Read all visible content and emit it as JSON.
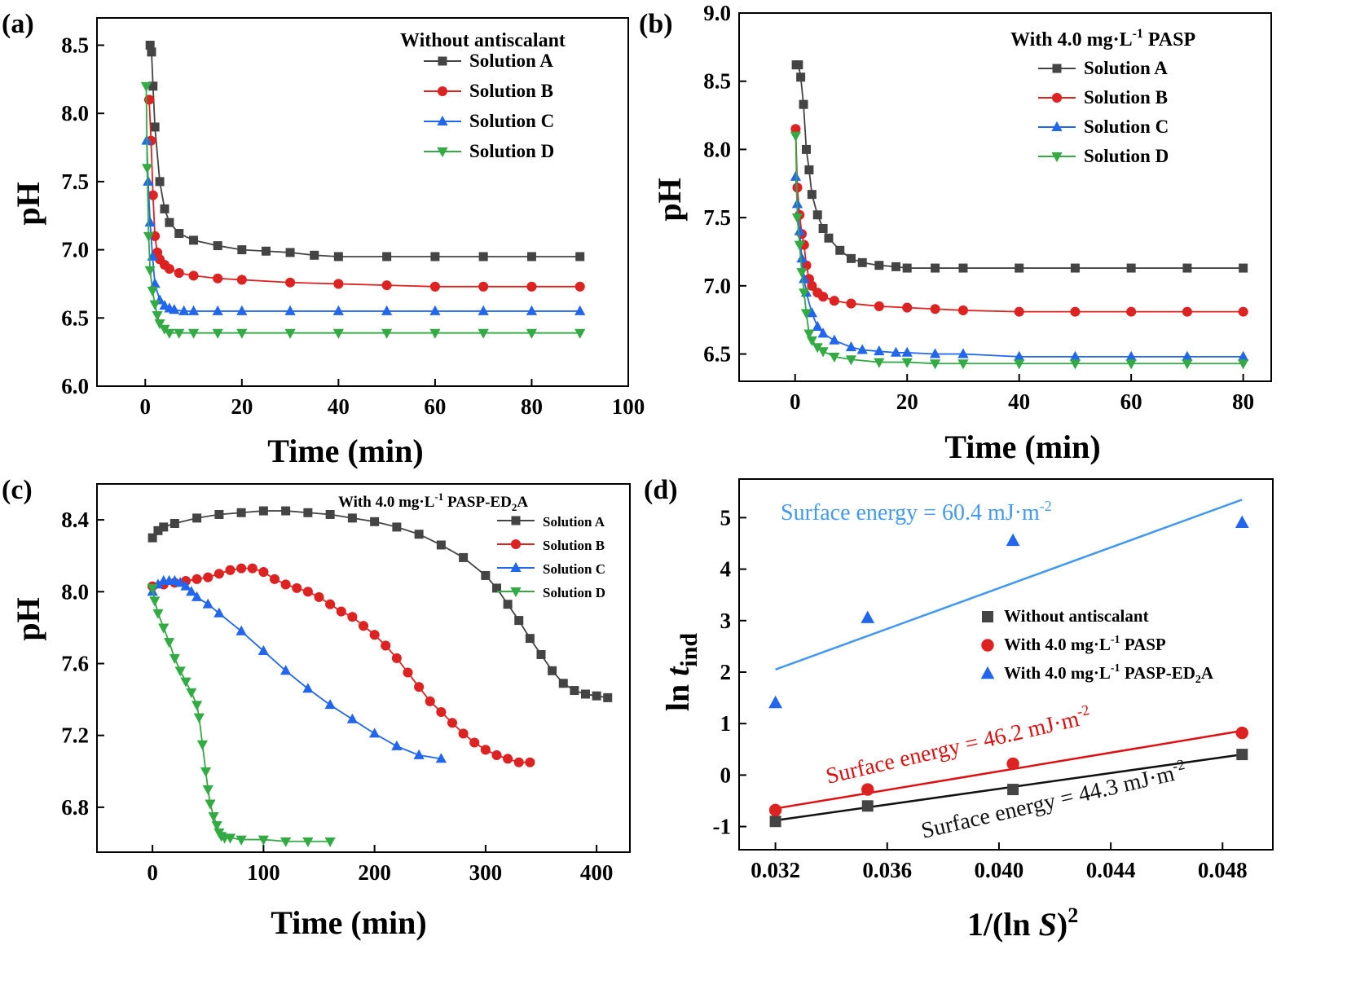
{
  "colors": {
    "A": "#444444",
    "B": "#dd2222",
    "C": "#2266ee",
    "D": "#33aa44",
    "line_top": "#4499ee",
    "line_mid": "#dd1111",
    "line_bot": "#111111"
  },
  "chart_data": [
    {
      "type": "line",
      "panel": "(a)",
      "xlabel": "Time (min)",
      "ylabel": "pH",
      "xlim": [
        -10,
        100
      ],
      "ylim": [
        6.0,
        8.7
      ],
      "xticks": [
        "0",
        "20",
        "40",
        "60",
        "80",
        "100"
      ],
      "yticks": [
        "6.0",
        "6.5",
        "7.0",
        "7.5",
        "8.0",
        "8.5"
      ],
      "legend_title": "Without antiscalant",
      "legend": "top-right",
      "series": [
        {
          "name": "Solution A",
          "marker": "square",
          "x": [
            1.0,
            1.3,
            1.6,
            2,
            3,
            4,
            5,
            7,
            10,
            15,
            20,
            25,
            30,
            35,
            40,
            50,
            60,
            70,
            80,
            90
          ],
          "y": [
            8.5,
            8.45,
            8.2,
            7.9,
            7.5,
            7.3,
            7.2,
            7.12,
            7.07,
            7.03,
            7.0,
            6.99,
            6.98,
            6.96,
            6.95,
            6.95,
            6.95,
            6.95,
            6.95,
            6.95
          ]
        },
        {
          "name": "Solution B",
          "marker": "circle",
          "x": [
            0.8,
            1.2,
            1.6,
            2,
            2.5,
            3,
            4,
            5,
            7,
            10,
            15,
            20,
            30,
            40,
            50,
            60,
            70,
            80,
            90
          ],
          "y": [
            8.1,
            7.8,
            7.4,
            7.1,
            6.98,
            6.93,
            6.89,
            6.86,
            6.83,
            6.81,
            6.79,
            6.78,
            6.76,
            6.75,
            6.74,
            6.73,
            6.73,
            6.73,
            6.73
          ]
        },
        {
          "name": "Solution C",
          "marker": "triangle-up",
          "x": [
            0.3,
            0.6,
            1,
            1.5,
            2,
            3,
            4,
            5,
            6,
            8,
            10,
            15,
            20,
            30,
            40,
            50,
            60,
            70,
            80,
            90
          ],
          "y": [
            7.8,
            7.5,
            7.2,
            6.95,
            6.75,
            6.63,
            6.59,
            6.57,
            6.56,
            6.55,
            6.55,
            6.55,
            6.55,
            6.55,
            6.55,
            6.55,
            6.55,
            6.55,
            6.55,
            6.55
          ]
        },
        {
          "name": "Solution D",
          "marker": "triangle-down",
          "x": [
            0.2,
            0.4,
            0.7,
            1,
            1.5,
            2,
            2.5,
            3,
            4,
            5,
            7,
            10,
            15,
            20,
            30,
            40,
            50,
            60,
            70,
            80,
            90
          ],
          "y": [
            8.2,
            7.6,
            7.1,
            6.85,
            6.7,
            6.6,
            6.52,
            6.46,
            6.42,
            6.39,
            6.39,
            6.39,
            6.39,
            6.39,
            6.39,
            6.39,
            6.39,
            6.39,
            6.39,
            6.39,
            6.39
          ]
        }
      ]
    },
    {
      "type": "line",
      "panel": "(b)",
      "xlabel": "Time (min)",
      "ylabel": "pH",
      "xlim": [
        -10,
        85
      ],
      "ylim": [
        6.3,
        9.0
      ],
      "xticks": [
        "0",
        "20",
        "40",
        "60",
        "80"
      ],
      "yticks": [
        "6.5",
        "7.0",
        "7.5",
        "8.0",
        "8.5",
        "9.0"
      ],
      "legend_title": "With 4.0 mg·L",
      "legend_title_sup": "-1",
      "legend_title_end": " PASP",
      "legend": "top-right",
      "series": [
        {
          "name": "Solution A",
          "marker": "square",
          "x": [
            0.2,
            0.6,
            1,
            1.5,
            2,
            2.5,
            3,
            4,
            5,
            6,
            8,
            10,
            12,
            15,
            18,
            20,
            25,
            30,
            40,
            50,
            60,
            70,
            80
          ],
          "y": [
            8.62,
            8.62,
            8.53,
            8.33,
            8.0,
            7.85,
            7.67,
            7.52,
            7.42,
            7.35,
            7.26,
            7.2,
            7.17,
            7.15,
            7.14,
            7.13,
            7.13,
            7.13,
            7.13,
            7.13,
            7.13,
            7.13,
            7.13
          ]
        },
        {
          "name": "Solution B",
          "marker": "circle",
          "x": [
            0.1,
            0.4,
            0.8,
            1.2,
            1.6,
            2,
            2.5,
            3,
            4,
            5,
            7,
            10,
            15,
            20,
            25,
            30,
            40,
            50,
            60,
            70,
            80
          ],
          "y": [
            8.15,
            7.72,
            7.52,
            7.38,
            7.3,
            7.15,
            7.05,
            7.0,
            6.95,
            6.92,
            6.89,
            6.87,
            6.85,
            6.84,
            6.83,
            6.82,
            6.81,
            6.81,
            6.81,
            6.81,
            6.81
          ]
        },
        {
          "name": "Solution C",
          "marker": "triangle-up",
          "x": [
            0.1,
            0.4,
            0.8,
            1.2,
            1.6,
            2,
            3,
            4,
            5,
            7,
            10,
            12,
            15,
            18,
            20,
            25,
            30,
            40,
            50,
            60,
            70,
            80
          ],
          "y": [
            7.8,
            7.6,
            7.4,
            7.2,
            7.05,
            6.95,
            6.8,
            6.7,
            6.65,
            6.6,
            6.55,
            6.53,
            6.52,
            6.51,
            6.51,
            6.5,
            6.5,
            6.48,
            6.48,
            6.48,
            6.48,
            6.48
          ]
        },
        {
          "name": "Solution D",
          "marker": "triangle-down",
          "x": [
            0.1,
            0.4,
            0.8,
            1.2,
            1.6,
            2,
            2.5,
            3,
            4,
            5,
            7,
            10,
            15,
            20,
            25,
            30,
            40,
            50,
            60,
            70,
            80
          ],
          "y": [
            8.1,
            7.5,
            7.3,
            7.1,
            6.95,
            6.8,
            6.65,
            6.6,
            6.55,
            6.52,
            6.48,
            6.46,
            6.44,
            6.44,
            6.43,
            6.43,
            6.43,
            6.43,
            6.43,
            6.43,
            6.43
          ]
        }
      ]
    },
    {
      "type": "line",
      "panel": "(c)",
      "xlabel": "Time (min)",
      "ylabel": "pH",
      "xlim": [
        -50,
        430
      ],
      "ylim": [
        6.55,
        8.6
      ],
      "xticks": [
        "0",
        "100",
        "200",
        "300",
        "400"
      ],
      "yticks": [
        "6.8",
        "7.2",
        "7.6",
        "8.0",
        "8.4"
      ],
      "legend_title": "With 4.0 mg·L",
      "legend_title_sup": "-1",
      "legend_title_end": " PASP-ED",
      "legend_title_sub": "2",
      "legend_title_tail": "A",
      "legend": "top-right",
      "series": [
        {
          "name": "Solution A",
          "marker": "square",
          "x": [
            0,
            5,
            10,
            20,
            40,
            60,
            80,
            100,
            120,
            140,
            160,
            180,
            200,
            220,
            240,
            260,
            280,
            300,
            310,
            320,
            330,
            340,
            350,
            360,
            370,
            380,
            390,
            400,
            410
          ],
          "y": [
            8.3,
            8.34,
            8.36,
            8.38,
            8.41,
            8.43,
            8.44,
            8.45,
            8.45,
            8.44,
            8.43,
            8.41,
            8.39,
            8.36,
            8.32,
            8.26,
            8.19,
            8.09,
            8.02,
            7.93,
            7.84,
            7.74,
            7.65,
            7.56,
            7.49,
            7.45,
            7.43,
            7.42,
            7.41
          ]
        },
        {
          "name": "Solution B",
          "marker": "circle",
          "x": [
            0,
            10,
            20,
            30,
            40,
            50,
            60,
            70,
            80,
            90,
            100,
            110,
            120,
            130,
            140,
            150,
            160,
            170,
            180,
            190,
            200,
            210,
            220,
            230,
            240,
            250,
            260,
            270,
            280,
            290,
            300,
            310,
            320,
            330,
            340
          ],
          "y": [
            8.03,
            8.04,
            8.05,
            8.06,
            8.07,
            8.08,
            8.1,
            8.12,
            8.13,
            8.13,
            8.11,
            8.07,
            8.04,
            8.02,
            8.0,
            7.97,
            7.93,
            7.89,
            7.86,
            7.81,
            7.76,
            7.7,
            7.63,
            7.55,
            7.47,
            7.39,
            7.33,
            7.27,
            7.21,
            7.16,
            7.12,
            7.09,
            7.07,
            7.05,
            7.05
          ]
        },
        {
          "name": "Solution C",
          "marker": "triangle-up",
          "x": [
            0,
            5,
            10,
            15,
            20,
            25,
            30,
            35,
            40,
            50,
            60,
            80,
            100,
            120,
            140,
            160,
            180,
            200,
            220,
            240,
            260
          ],
          "y": [
            8.0,
            8.04,
            8.06,
            8.06,
            8.06,
            8.05,
            8.03,
            8.0,
            7.97,
            7.93,
            7.88,
            7.78,
            7.67,
            7.56,
            7.46,
            7.37,
            7.29,
            7.21,
            7.14,
            7.09,
            7.07
          ]
        },
        {
          "name": "Solution D",
          "marker": "triangle-down",
          "x": [
            0,
            2,
            5,
            10,
            15,
            20,
            25,
            30,
            35,
            40,
            42,
            45,
            48,
            50,
            52,
            55,
            58,
            60,
            62,
            65,
            70,
            80,
            100,
            120,
            140,
            160
          ],
          "y": [
            8.02,
            7.95,
            7.88,
            7.8,
            7.72,
            7.63,
            7.56,
            7.5,
            7.44,
            7.37,
            7.3,
            7.15,
            7.0,
            6.9,
            6.82,
            6.75,
            6.7,
            6.66,
            6.64,
            6.63,
            6.63,
            6.62,
            6.62,
            6.61,
            6.61,
            6.61
          ]
        }
      ]
    },
    {
      "type": "scatter",
      "panel": "(d)",
      "xlabel_pre": "1/(ln ",
      "xlabel_it": "S",
      "xlabel_post": ")",
      "xlabel_sup": "2",
      "ylabel_pre": "ln ",
      "ylabel_it": "t",
      "ylabel_sub": "ind",
      "xlim": [
        0.0307,
        0.0498
      ],
      "ylim": [
        -1.45,
        5.75
      ],
      "xticks": [
        "0.032",
        "0.036",
        "0.040",
        "0.044",
        "0.048"
      ],
      "yticks": [
        "-1",
        "0",
        "1",
        "2",
        "3",
        "4",
        "5"
      ],
      "legend": "middle-right",
      "series": [
        {
          "name": "Without antiscalant",
          "name_pre": "Without antiscalant",
          "marker": "square",
          "x": [
            0.032,
            0.0353,
            0.0405,
            0.0487
          ],
          "y": [
            -0.9,
            -0.6,
            -0.28,
            0.4
          ],
          "fit": [
            [
              0.032,
              -0.88
            ],
            [
              0.0487,
              0.4
            ]
          ]
        },
        {
          "name": "With 4.0 mg·L-1 PASP",
          "name_pre": "With 4.0 mg·L",
          "name_sup": "-1",
          "name_post": " PASP",
          "marker": "circle",
          "x": [
            0.032,
            0.0353,
            0.0405,
            0.0487
          ],
          "y": [
            -0.68,
            -0.28,
            0.22,
            0.82
          ],
          "fit": [
            [
              0.032,
              -0.65
            ],
            [
              0.0487,
              0.86
            ]
          ]
        },
        {
          "name": "With 4.0 mg·L-1 PASP-ED2A",
          "name_pre": "With 4.0 mg·L",
          "name_sup": "-1",
          "name_post": " PASP-ED",
          "name_sub": "2",
          "name_tail": "A",
          "marker": "triangle-up",
          "x": [
            0.032,
            0.0353,
            0.0405,
            0.0487
          ],
          "y": [
            1.4,
            3.05,
            4.55,
            4.9
          ],
          "fit": [
            [
              0.032,
              2.05
            ],
            [
              0.0487,
              5.35
            ]
          ]
        }
      ],
      "annotations": [
        {
          "pre": "Surface energy = 60.4 mJ·m",
          "sup": "-2"
        },
        {
          "pre": "Surface energy = 46.2 mJ·m",
          "sup": "-2"
        },
        {
          "pre": "Surface energy = 44.3 mJ·m",
          "sup": "-2"
        }
      ]
    }
  ]
}
